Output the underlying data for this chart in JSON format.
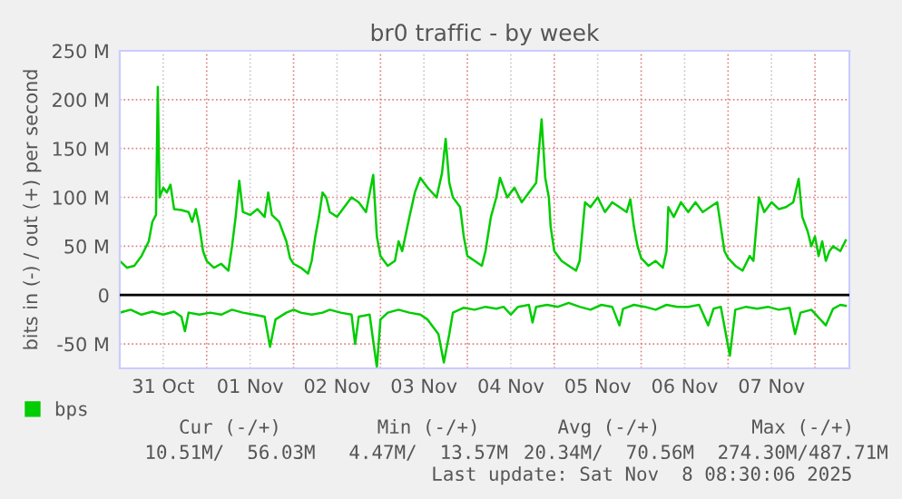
{
  "chart_data": {
    "type": "line",
    "title": "br0 traffic - by week",
    "ylabel": "bits in (-) / out (+) per second",
    "xlim": [
      "2025-10-31T00:00",
      "2025-11-08T09:30"
    ],
    "xticks": [
      {
        "value": "2025-10-31T12:00",
        "label": "31 Oct"
      },
      {
        "value": "2025-11-01T12:00",
        "label": "01 Nov"
      },
      {
        "value": "2025-11-02T12:00",
        "label": "02 Nov"
      },
      {
        "value": "2025-11-03T12:00",
        "label": "03 Nov"
      },
      {
        "value": "2025-11-04T12:00",
        "label": "04 Nov"
      },
      {
        "value": "2025-11-05T12:00",
        "label": "05 Nov"
      },
      {
        "value": "2025-11-06T12:00",
        "label": "06 Nov"
      },
      {
        "value": "2025-11-07T12:00",
        "label": "07 Nov"
      },
      {
        "value": "2025-11-01T00:00",
        "label": null
      },
      {
        "value": "2025-11-02T00:00",
        "label": null
      },
      {
        "value": "2025-11-03T00:00",
        "label": null
      },
      {
        "value": "2025-11-04T00:00",
        "label": null
      },
      {
        "value": "2025-11-05T00:00",
        "label": null
      },
      {
        "value": "2025-11-06T00:00",
        "label": null
      },
      {
        "value": "2025-11-07T00:00",
        "label": null
      },
      {
        "value": "2025-11-08T00:00",
        "label": null
      }
    ],
    "ylim": [
      -75,
      250
    ],
    "yticks": [
      {
        "value": -50,
        "label": "-50 M"
      },
      0,
      {
        "value": 50,
        "label": "50 M"
      },
      {
        "value": 100,
        "label": "100 M"
      },
      {
        "value": 150,
        "label": "150 M"
      },
      {
        "value": 200,
        "label": "200 M"
      },
      {
        "value": 250,
        "label": "250 M"
      }
    ],
    "grid": true,
    "legend": "bottom left",
    "line_style": "solid",
    "ref_lines": [
      {
        "axis": "y",
        "value": 0,
        "color": "#000000"
      }
    ],
    "annotations": [
      "Cur (-/+)",
      "Min (-/+)",
      "Avg (-/+)",
      "Max (-/+)",
      "10.51M/  56.03M",
      "4.47M/  13.57M",
      "20.34M/  70.56M",
      "274.30M/487.71M",
      "Last update: Sat Nov  8 08:30:06 2025"
    ],
    "series": [
      {
        "name": "bps",
        "color": "#00cc00",
        "x": [
          "2025-10-31T00:00",
          "2025-10-31T02:00",
          "2025-10-31T04:00",
          "2025-10-31T06:00",
          "2025-10-31T08:00",
          "2025-10-31T09:00",
          "2025-10-31T10:00",
          "2025-10-31T10:30",
          "2025-10-31T11:00",
          "2025-10-31T12:00",
          "2025-10-31T13:00",
          "2025-10-31T14:00",
          "2025-10-31T15:00",
          "2025-10-31T17:00",
          "2025-10-31T19:00",
          "2025-10-31T20:00",
          "2025-10-31T21:00",
          "2025-10-31T22:00",
          "2025-10-31T23:00",
          "2025-11-01T00:00",
          "2025-11-01T02:00",
          "2025-11-01T04:00",
          "2025-11-01T06:00",
          "2025-11-01T07:00",
          "2025-11-01T08:00",
          "2025-11-01T09:00",
          "2025-11-01T10:00",
          "2025-11-01T12:00",
          "2025-11-01T14:00",
          "2025-11-01T16:00",
          "2025-11-01T17:00",
          "2025-11-01T18:00",
          "2025-11-01T20:00",
          "2025-11-01T22:00",
          "2025-11-01T23:00",
          "2025-11-02T00:00",
          "2025-11-02T02:00",
          "2025-11-02T04:00",
          "2025-11-02T05:00",
          "2025-11-02T06:00",
          "2025-11-02T07:00",
          "2025-11-02T08:00",
          "2025-11-02T09:00",
          "2025-11-02T10:00",
          "2025-11-02T12:00",
          "2025-11-02T14:00",
          "2025-11-02T16:00",
          "2025-11-02T18:00",
          "2025-11-02T20:00",
          "2025-11-02T22:00",
          "2025-11-02T23:00",
          "2025-11-03T00:00",
          "2025-11-03T02:00",
          "2025-11-03T04:00",
          "2025-11-03T05:00",
          "2025-11-03T06:00",
          "2025-11-03T08:00",
          "2025-11-03T09:30",
          "2025-11-03T11:00",
          "2025-11-03T13:00",
          "2025-11-03T15:30",
          "2025-11-03T17:00",
          "2025-11-03T18:00",
          "2025-11-03T19:00",
          "2025-11-03T20:00",
          "2025-11-03T22:00",
          "2025-11-03T23:00",
          "2025-11-04T00:00",
          "2025-11-04T02:00",
          "2025-11-04T04:00",
          "2025-11-04T05:00",
          "2025-11-04T06:30",
          "2025-11-04T08:00",
          "2025-11-04T09:00",
          "2025-11-04T11:00",
          "2025-11-04T13:00",
          "2025-11-04T15:00",
          "2025-11-04T17:00",
          "2025-11-04T19:00",
          "2025-11-04T20:30",
          "2025-11-04T21:30",
          "2025-11-04T22:30",
          "2025-11-04T23:00",
          "2025-11-05T00:00",
          "2025-11-05T02:00",
          "2025-11-05T04:00",
          "2025-11-05T06:00",
          "2025-11-05T07:00",
          "2025-11-05T08:30",
          "2025-11-05T10:00",
          "2025-11-05T12:00",
          "2025-11-05T14:00",
          "2025-11-05T16:00",
          "2025-11-05T18:00",
          "2025-11-05T20:00",
          "2025-11-05T21:00",
          "2025-11-05T22:00",
          "2025-11-05T23:00",
          "2025-11-06T00:00",
          "2025-11-06T02:00",
          "2025-11-06T04:00",
          "2025-11-06T06:00",
          "2025-11-06T07:00",
          "2025-11-06T07:30",
          "2025-11-06T09:00",
          "2025-11-06T11:00",
          "2025-11-06T13:00",
          "2025-11-06T15:00",
          "2025-11-06T17:00",
          "2025-11-06T19:00",
          "2025-11-06T21:00",
          "2025-11-06T22:00",
          "2025-11-06T23:00",
          "2025-11-07T00:00",
          "2025-11-07T02:00",
          "2025-11-07T04:00",
          "2025-11-07T06:00",
          "2025-11-07T07:00",
          "2025-11-07T08:30",
          "2025-11-07T10:00",
          "2025-11-07T12:00",
          "2025-11-07T14:00",
          "2025-11-07T16:00",
          "2025-11-07T18:00",
          "2025-11-07T19:30",
          "2025-11-07T20:30",
          "2025-11-07T22:00",
          "2025-11-07T23:00",
          "2025-11-08T00:00",
          "2025-11-08T01:00",
          "2025-11-08T02:00",
          "2025-11-08T03:00",
          "2025-11-08T04:00",
          "2025-11-08T05:00",
          "2025-11-08T07:00",
          "2025-11-08T08:30"
        ],
        "values": [
          35,
          28,
          30,
          40,
          55,
          75,
          82,
          213,
          100,
          110,
          105,
          113,
          88,
          87,
          85,
          75,
          88,
          70,
          45,
          35,
          28,
          32,
          25,
          50,
          80,
          117,
          85,
          82,
          88,
          80,
          105,
          82,
          75,
          55,
          38,
          32,
          28,
          22,
          35,
          60,
          80,
          105,
          100,
          85,
          80,
          90,
          100,
          95,
          85,
          123,
          60,
          40,
          30,
          35,
          55,
          45,
          80,
          105,
          120,
          110,
          100,
          125,
          160,
          115,
          100,
          90,
          60,
          40,
          35,
          30,
          45,
          80,
          100,
          120,
          100,
          110,
          95,
          105,
          115,
          180,
          120,
          100,
          70,
          45,
          35,
          30,
          25,
          35,
          95,
          90,
          100,
          85,
          95,
          90,
          85,
          98,
          70,
          50,
          38,
          30,
          35,
          28,
          45,
          90,
          80,
          95,
          85,
          95,
          85,
          90,
          95,
          70,
          45,
          38,
          30,
          25,
          40,
          35,
          100,
          85,
          95,
          88,
          90,
          95,
          119,
          80,
          65,
          50,
          60,
          40,
          55,
          35,
          45,
          50,
          45,
          56
        ]
      },
      {
        "color": "#00cc00",
        "x": [
          "2025-10-31T00:00",
          "2025-10-31T03:00",
          "2025-10-31T06:00",
          "2025-10-31T09:00",
          "2025-10-31T12:00",
          "2025-10-31T15:00",
          "2025-10-31T17:00",
          "2025-10-31T18:00",
          "2025-10-31T19:00",
          "2025-10-31T22:00",
          "2025-11-01T01:00",
          "2025-11-01T04:00",
          "2025-11-01T07:00",
          "2025-11-01T10:00",
          "2025-11-01T13:00",
          "2025-11-01T16:00",
          "2025-11-01T17:30",
          "2025-11-01T19:00",
          "2025-11-01T22:00",
          "2025-11-02T00:00",
          "2025-11-02T02:00",
          "2025-11-02T05:00",
          "2025-11-02T08:00",
          "2025-11-02T10:00",
          "2025-11-02T13:00",
          "2025-11-02T16:00",
          "2025-11-02T17:00",
          "2025-11-02T18:00",
          "2025-11-02T21:00",
          "2025-11-02T23:00",
          "2025-11-03T00:00",
          "2025-11-03T02:00",
          "2025-11-03T05:00",
          "2025-11-03T08:00",
          "2025-11-03T11:00",
          "2025-11-03T13:00",
          "2025-11-03T16:00",
          "2025-11-03T17:30",
          "2025-11-03T19:00",
          "2025-11-03T20:00",
          "2025-11-03T23:00",
          "2025-11-04T02:00",
          "2025-11-04T05:00",
          "2025-11-04T08:00",
          "2025-11-04T10:00",
          "2025-11-04T12:00",
          "2025-11-04T14:00",
          "2025-11-04T17:00",
          "2025-11-04T18:00",
          "2025-11-04T19:00",
          "2025-11-04T22:00",
          "2025-11-05T01:00",
          "2025-11-05T04:00",
          "2025-11-05T07:00",
          "2025-11-05T10:00",
          "2025-11-05T13:00",
          "2025-11-05T16:00",
          "2025-11-05T18:00",
          "2025-11-05T19:00",
          "2025-11-05T22:00",
          "2025-11-06T01:00",
          "2025-11-06T04:00",
          "2025-11-06T07:00",
          "2025-11-06T10:00",
          "2025-11-06T13:00",
          "2025-11-06T16:00",
          "2025-11-06T18:30",
          "2025-11-06T20:00",
          "2025-11-06T22:00",
          "2025-11-07T00:30",
          "2025-11-07T02:00",
          "2025-11-07T05:00",
          "2025-11-07T08:00",
          "2025-11-07T11:00",
          "2025-11-07T14:00",
          "2025-11-07T17:00",
          "2025-11-07T18:30",
          "2025-11-07T20:00",
          "2025-11-07T23:00",
          "2025-11-08T03:00",
          "2025-11-08T05:00",
          "2025-11-08T07:00",
          "2025-11-08T08:30"
        ],
        "values": [
          -18,
          -15,
          -20,
          -17,
          -20,
          -17,
          -22,
          -37,
          -18,
          -20,
          -18,
          -20,
          -15,
          -18,
          -20,
          -22,
          -53,
          -25,
          -18,
          -15,
          -18,
          -20,
          -18,
          -15,
          -18,
          -20,
          -50,
          -22,
          -20,
          -74,
          -25,
          -18,
          -15,
          -18,
          -20,
          -25,
          -40,
          -69,
          -40,
          -18,
          -13,
          -15,
          -12,
          -14,
          -12,
          -20,
          -12,
          -10,
          -28,
          -12,
          -10,
          -12,
          -8,
          -12,
          -15,
          -10,
          -12,
          -31,
          -14,
          -10,
          -12,
          -15,
          -10,
          -12,
          -12,
          -10,
          -31,
          -14,
          -12,
          -62,
          -15,
          -12,
          -14,
          -12,
          -15,
          -13,
          -40,
          -18,
          -15,
          -31,
          -14,
          -10,
          -11
        ]
      }
    ]
  }
}
